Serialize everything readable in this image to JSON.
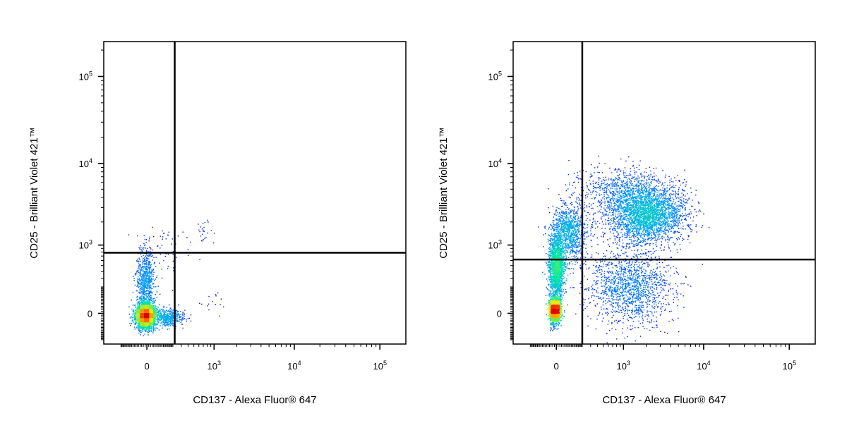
{
  "chart_data": [
    {
      "type": "scatter",
      "subtype": "flow-cytometry-density-dot-plot",
      "xlabel": "CD137 - Alexa Fluor® 647",
      "ylabel": "CD25 - Brilliant Violet 421™",
      "xscale": "biexponential",
      "yscale": "biexponential",
      "xticks": [
        {
          "value": 0,
          "base": "0",
          "exp": ""
        },
        {
          "value": 1000,
          "base": "10",
          "exp": "3"
        },
        {
          "value": 10000,
          "base": "10",
          "exp": "4"
        },
        {
          "value": 100000,
          "base": "10",
          "exp": "5"
        }
      ],
      "yticks": [
        {
          "value": 0,
          "base": "0",
          "exp": ""
        },
        {
          "value": 1000,
          "base": "10",
          "exp": "3"
        },
        {
          "value": 10000,
          "base": "10",
          "exp": "4"
        },
        {
          "value": 100000,
          "base": "10",
          "exp": "5"
        }
      ],
      "gate": {
        "x": 220,
        "y": 780
      },
      "populations": [
        {
          "cx": -10,
          "cy": -10,
          "sx": 0.055,
          "sy": 0.07,
          "n": 3600
        },
        {
          "cx": -10,
          "cy": 300,
          "sx": 0.05,
          "sy": 0.17,
          "n": 700
        },
        {
          "cx": 150,
          "cy": -20,
          "sx": 0.09,
          "sy": 0.05,
          "n": 500
        },
        {
          "cx": 120,
          "cy": 800,
          "sx": 0.15,
          "sy": 0.15,
          "n": 55
        },
        {
          "cx": 700,
          "cy": 1500,
          "sx": 0.08,
          "sy": 0.09,
          "n": 25
        },
        {
          "cx": 1000,
          "cy": 60,
          "sx": 0.1,
          "sy": 0.06,
          "n": 15
        }
      ],
      "seed": 11,
      "grid": false,
      "legend": "none"
    },
    {
      "type": "scatter",
      "subtype": "flow-cytometry-density-dot-plot",
      "xlabel": "CD137 - Alexa Fluor® 647",
      "ylabel": "CD25 - Brilliant Violet 421™",
      "xscale": "biexponential",
      "yscale": "biexponential",
      "xticks": [
        {
          "value": 0,
          "base": "0",
          "exp": ""
        },
        {
          "value": 1000,
          "base": "10",
          "exp": "3"
        },
        {
          "value": 10000,
          "base": "10",
          "exp": "4"
        },
        {
          "value": 100000,
          "base": "10",
          "exp": "5"
        }
      ],
      "yticks": [
        {
          "value": 0,
          "base": "0",
          "exp": ""
        },
        {
          "value": 1000,
          "base": "10",
          "exp": "3"
        },
        {
          "value": 10000,
          "base": "10",
          "exp": "4"
        },
        {
          "value": 100000,
          "base": "10",
          "exp": "5"
        }
      ],
      "gate": {
        "x": 200,
        "y": 620
      },
      "populations": [
        {
          "cx": -10,
          "cy": 20,
          "sx": 0.03,
          "sy": 0.07,
          "n": 2300
        },
        {
          "cx": 0,
          "cy": 500,
          "sx": 0.045,
          "sy": 0.2,
          "n": 1900
        },
        {
          "cx": 80,
          "cy": 1500,
          "sx": 0.1,
          "sy": 0.17,
          "n": 1000
        },
        {
          "cx": 2000,
          "cy": 2500,
          "sx": 0.23,
          "sy": 0.16,
          "n": 3000
        },
        {
          "cx": 1200,
          "cy": 200,
          "sx": 0.25,
          "sy": 0.22,
          "n": 1500
        },
        {
          "cx": 1000,
          "cy": 5000,
          "sx": 0.28,
          "sy": 0.12,
          "n": 700
        }
      ],
      "seed": 29,
      "grid": false,
      "legend": "none"
    }
  ]
}
